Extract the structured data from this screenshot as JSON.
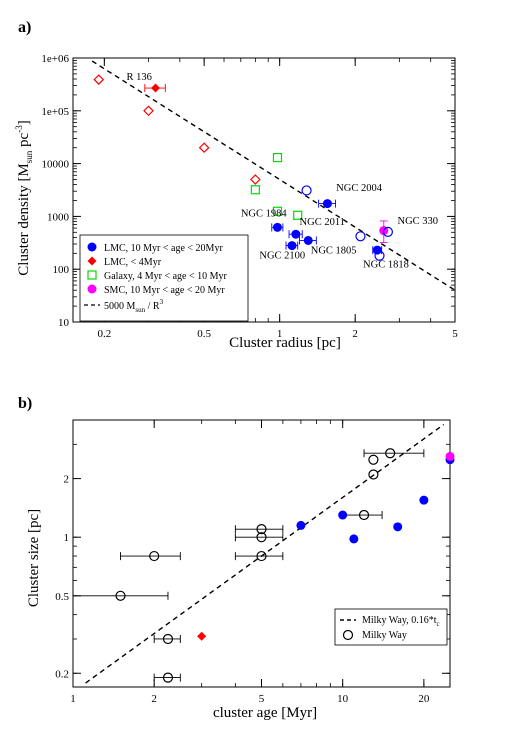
{
  "chart_data": [
    {
      "panel_label": "a)",
      "type": "scatter",
      "xlabel": "Cluster radius [pc]",
      "ylabel": {
        "main": "Cluster density [M",
        "sub": "sun",
        "mid": " pc",
        "sup": "-3",
        "end": "]"
      },
      "x_scale": "log",
      "y_scale": "log",
      "xlim": [
        0.15,
        5
      ],
      "ylim": [
        10,
        1000000
      ],
      "x_ticks": [
        {
          "v": 0.2,
          "label": "0.2"
        },
        {
          "v": 0.5,
          "label": "0.5"
        },
        {
          "v": 1,
          "label": "1"
        },
        {
          "v": 2,
          "label": "2"
        },
        {
          "v": 5,
          "label": "5"
        }
      ],
      "y_ticks": [
        {
          "v": 10,
          "label": "10"
        },
        {
          "v": 100,
          "label": "100"
        },
        {
          "v": 1000,
          "label": "1000"
        },
        {
          "v": 10000,
          "label": "10000"
        },
        {
          "v": 100000,
          "label": "1e+05"
        },
        {
          "v": 1000000,
          "label": "1e+06"
        }
      ],
      "series": [
        {
          "legend": "LMC, 10 Myr < age < 20Myr",
          "marker": "filled-circle",
          "color": "#0000ff",
          "points": [
            {
              "x": 0.98,
              "y": 620,
              "xerr": 0.05
            },
            {
              "x": 1.12,
              "y": 280,
              "xerr": 0.06
            },
            {
              "x": 1.16,
              "y": 460,
              "xerr": 0.07
            },
            {
              "x": 1.3,
              "y": 350,
              "xerr": 0.1
            },
            {
              "x": 1.55,
              "y": 1750,
              "xerr": 0.12
            },
            {
              "x": 2.45,
              "y": 230,
              "xerr": 0.1
            }
          ]
        },
        {
          "legend": "LMC, < 4Myr",
          "marker": "filled-diamond",
          "color": "#ff0000",
          "points": [
            {
              "x": 0.32,
              "y": 270000,
              "xerr": 0.03
            }
          ]
        },
        {
          "legend": "Galaxy, 4 Myr < age < 10 Myr",
          "marker": "open-square",
          "color": "#00dd00",
          "points": [
            {
              "x": 0.8,
              "y": 3200
            },
            {
              "x": 0.98,
              "y": 13000
            },
            {
              "x": 0.98,
              "y": 1250
            },
            {
              "x": 1.18,
              "y": 1050
            }
          ]
        },
        {
          "legend": "SMC, 10 Myr < age < 20 Myr",
          "marker": "filled-circle",
          "color": "#ff00ff",
          "points": [
            {
              "x": 2.6,
              "y": 540,
              "yerr_lo": 320,
              "yerr_hi": 820
            }
          ]
        },
        {
          "legend": "",
          "marker": "open-diamond",
          "color": "#ff0000",
          "points": [
            {
              "x": 0.19,
              "y": 390000
            },
            {
              "x": 0.3,
              "y": 100000
            },
            {
              "x": 0.5,
              "y": 20000
            },
            {
              "x": 0.8,
              "y": 5000
            }
          ]
        },
        {
          "legend": "",
          "marker": "open-circle",
          "color": "#0000ff",
          "points": [
            {
              "x": 1.28,
              "y": 3100
            },
            {
              "x": 2.1,
              "y": 420
            },
            {
              "x": 2.5,
              "y": 180
            },
            {
              "x": 2.7,
              "y": 510
            }
          ]
        }
      ],
      "fit_line": {
        "legend": "5000 M",
        "legend_sub": "sun",
        "legend_mid": " / R",
        "legend_sup": "3",
        "style": "dashed",
        "color": "#000000",
        "coef": 5000,
        "power": -3
      },
      "legend_placement": "bottom-left",
      "annotations": [
        {
          "text": "R 136",
          "x": 0.245,
          "y": 380000
        },
        {
          "text": "NGC 2004",
          "x": 1.68,
          "y": 3000
        },
        {
          "text": "NGC 1984",
          "x": 0.7,
          "y": 1000
        },
        {
          "text": "NGC 2011",
          "x": 1.2,
          "y": 680
        },
        {
          "text": "NGC 330",
          "x": 2.95,
          "y": 720
        },
        {
          "text": "NGC 2100",
          "x": 0.83,
          "y": 160
        },
        {
          "text": "NGC 1805",
          "x": 1.33,
          "y": 200
        },
        {
          "text": "NGC 1818",
          "x": 2.15,
          "y": 108
        }
      ],
      "grid": false
    },
    {
      "panel_label": "b)",
      "type": "scatter",
      "xlabel": "cluster age [Myr]",
      "ylabel": "Cluster size [pc]",
      "x_scale": "log",
      "y_scale": "log",
      "xlim": [
        1,
        25
      ],
      "ylim": [
        0.17,
        4.0
      ],
      "x_ticks": [
        {
          "v": 1,
          "label": "1"
        },
        {
          "v": 2,
          "label": "2"
        },
        {
          "v": 5,
          "label": "5"
        },
        {
          "v": 10,
          "label": "10"
        },
        {
          "v": 20,
          "label": "20"
        }
      ],
      "y_ticks": [
        {
          "v": 0.2,
          "label": "0.2"
        },
        {
          "v": 0.5,
          "label": "0.5"
        },
        {
          "v": 1,
          "label": "1"
        },
        {
          "v": 2,
          "label": "2"
        }
      ],
      "series": [
        {
          "legend": "Milky Way",
          "marker": "open-circle",
          "color": "#000000",
          "points": [
            {
              "x": 1.5,
              "y": 0.5,
              "xlo": 1.0,
              "xhi": 2.25
            },
            {
              "x": 2.0,
              "y": 0.8,
              "xlo": 1.5,
              "xhi": 2.5
            },
            {
              "x": 2.25,
              "y": 0.3,
              "xlo": 2.0,
              "xhi": 2.5
            },
            {
              "x": 2.25,
              "y": 0.19,
              "xlo": 2.0,
              "xhi": 2.5
            },
            {
              "x": 5.0,
              "y": 0.8,
              "xlo": 4.0,
              "xhi": 6.0
            },
            {
              "x": 5.0,
              "y": 1.0,
              "xlo": 4.0,
              "xhi": 6.0
            },
            {
              "x": 5.0,
              "y": 1.1,
              "xlo": 4.0,
              "xhi": 6.0
            },
            {
              "x": 12.0,
              "y": 1.3,
              "xlo": 10.0,
              "xhi": 14.0
            },
            {
              "x": 13.0,
              "y": 2.1
            },
            {
              "x": 13.0,
              "y": 2.5
            },
            {
              "x": 15.0,
              "y": 2.7,
              "xlo": 12.0,
              "xhi": 20.0
            }
          ]
        },
        {
          "legend": "",
          "marker": "filled-circle",
          "color": "#0000ff",
          "points": [
            {
              "x": 7.0,
              "y": 1.15
            },
            {
              "x": 10.0,
              "y": 1.3
            },
            {
              "x": 11.0,
              "y": 0.98
            },
            {
              "x": 16.0,
              "y": 1.13
            },
            {
              "x": 20.0,
              "y": 1.55
            },
            {
              "x": 25.0,
              "y": 2.5
            }
          ]
        },
        {
          "legend": "",
          "marker": "filled-circle",
          "color": "#ff00ff",
          "points": [
            {
              "x": 25.0,
              "y": 2.6
            }
          ]
        },
        {
          "legend": "",
          "marker": "filled-diamond",
          "color": "#ff0000",
          "points": [
            {
              "x": 3.0,
              "y": 0.31
            }
          ]
        }
      ],
      "fit_line": {
        "legend": "Milky Way, 0.16*t",
        "legend_sub": "c",
        "style": "dashed",
        "color": "#000000",
        "coef": 0.16,
        "power": 1
      },
      "legend_placement": "bottom-right",
      "grid": false
    }
  ]
}
